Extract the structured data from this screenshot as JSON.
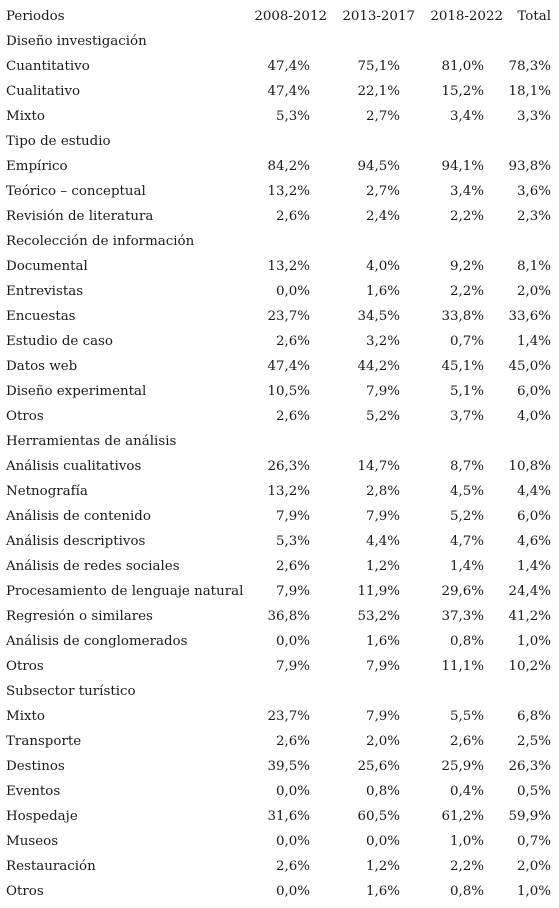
{
  "header": {
    "col0": "Periodos",
    "col1": "2008-2012",
    "col2": "2013-2017",
    "col3": "2018-2022",
    "col4": "Total"
  },
  "rows": [
    {
      "type": "section",
      "label": "Diseño investigación"
    },
    {
      "type": "data",
      "label": "Cuantitativo",
      "v": [
        "47,4%",
        "75,1%",
        "81,0%",
        "78,3%"
      ]
    },
    {
      "type": "data",
      "label": "Cualitativo",
      "v": [
        "47,4%",
        "22,1%",
        "15,2%",
        "18,1%"
      ]
    },
    {
      "type": "data",
      "label": "Mixto",
      "v": [
        "5,3%",
        "2,7%",
        "3,4%",
        "3,3%"
      ]
    },
    {
      "type": "section",
      "label": "Tipo de estudio"
    },
    {
      "type": "data",
      "label": "Empírico",
      "v": [
        "84,2%",
        "94,5%",
        "94,1%",
        "93,8%"
      ]
    },
    {
      "type": "data",
      "label": "Teórico – conceptual",
      "v": [
        "13,2%",
        "2,7%",
        "3,4%",
        "3,6%"
      ]
    },
    {
      "type": "data",
      "label": "Revisión de literatura",
      "v": [
        "2,6%",
        "2,4%",
        "2,2%",
        "2,3%"
      ]
    },
    {
      "type": "section",
      "label": "Recolección de información"
    },
    {
      "type": "data",
      "label": "Documental",
      "v": [
        "13,2%",
        "4,0%",
        "9,2%",
        "8,1%"
      ]
    },
    {
      "type": "data",
      "label": "Entrevistas",
      "v": [
        "0,0%",
        "1,6%",
        "2,2%",
        "2,0%"
      ]
    },
    {
      "type": "data",
      "label": "Encuestas",
      "v": [
        "23,7%",
        "34,5%",
        "33,8%",
        "33,6%"
      ]
    },
    {
      "type": "data",
      "label": "Estudio de caso",
      "v": [
        "2,6%",
        "3,2%",
        "0,7%",
        "1,4%"
      ]
    },
    {
      "type": "data",
      "label": "Datos web",
      "v": [
        "47,4%",
        "44,2%",
        "45,1%",
        "45,0%"
      ]
    },
    {
      "type": "data",
      "label": "Diseño experimental",
      "v": [
        "10,5%",
        "7,9%",
        "5,1%",
        "6,0%"
      ]
    },
    {
      "type": "data",
      "label": "Otros",
      "v": [
        "2,6%",
        "5,2%",
        "3,7%",
        "4,0%"
      ]
    },
    {
      "type": "section",
      "label": "Herramientas de análisis"
    },
    {
      "type": "data",
      "label": "Análisis cualitativos",
      "v": [
        "26,3%",
        "14,7%",
        "8,7%",
        "10,8%"
      ]
    },
    {
      "type": "data",
      "label": "Netnografía",
      "v": [
        "13,2%",
        "2,8%",
        "4,5%",
        "4,4%"
      ]
    },
    {
      "type": "data",
      "label": "Análisis de contenido",
      "v": [
        "7,9%",
        "7,9%",
        "5,2%",
        "6,0%"
      ]
    },
    {
      "type": "data",
      "label": "Análisis descriptivos",
      "v": [
        "5,3%",
        "4,4%",
        "4,7%",
        "4,6%"
      ]
    },
    {
      "type": "data",
      "label": "Análisis de redes sociales",
      "v": [
        "2,6%",
        "1,2%",
        "1,4%",
        "1,4%"
      ]
    },
    {
      "type": "data",
      "label": "Procesamiento de lenguaje natural",
      "v": [
        "7,9%",
        "11,9%",
        "29,6%",
        "24,4%"
      ]
    },
    {
      "type": "data",
      "label": "Regresión o similares",
      "v": [
        "36,8%",
        "53,2%",
        "37,3%",
        "41,2%"
      ]
    },
    {
      "type": "data",
      "label": "Análisis de conglomerados",
      "v": [
        "0,0%",
        "1,6%",
        "0,8%",
        "1,0%"
      ]
    },
    {
      "type": "data",
      "label": "Otros",
      "v": [
        "7,9%",
        "7,9%",
        "11,1%",
        "10,2%"
      ]
    },
    {
      "type": "section",
      "label": "Subsector turístico"
    },
    {
      "type": "data",
      "label": "Mixto",
      "v": [
        "23,7%",
        "7,9%",
        "5,5%",
        "6,8%"
      ]
    },
    {
      "type": "data",
      "label": "Transporte",
      "v": [
        "2,6%",
        "2,0%",
        "2,6%",
        "2,5%"
      ]
    },
    {
      "type": "data",
      "label": "Destinos",
      "v": [
        "39,5%",
        "25,6%",
        "25,9%",
        "26,3%"
      ]
    },
    {
      "type": "data",
      "label": "Eventos",
      "v": [
        "0,0%",
        "0,8%",
        "0,4%",
        "0,5%"
      ]
    },
    {
      "type": "data",
      "label": "Hospedaje",
      "v": [
        "31,6%",
        "60,5%",
        "61,2%",
        "59,9%"
      ]
    },
    {
      "type": "data",
      "label": "Museos",
      "v": [
        "0,0%",
        "0,0%",
        "1,0%",
        "0,7%"
      ]
    },
    {
      "type": "data",
      "label": "Restauración",
      "v": [
        "2,6%",
        "1,2%",
        "2,2%",
        "2,0%"
      ]
    },
    {
      "type": "data",
      "label": "Otros",
      "v": [
        "0,0%",
        "1,6%",
        "0,8%",
        "1,0%"
      ]
    }
  ]
}
